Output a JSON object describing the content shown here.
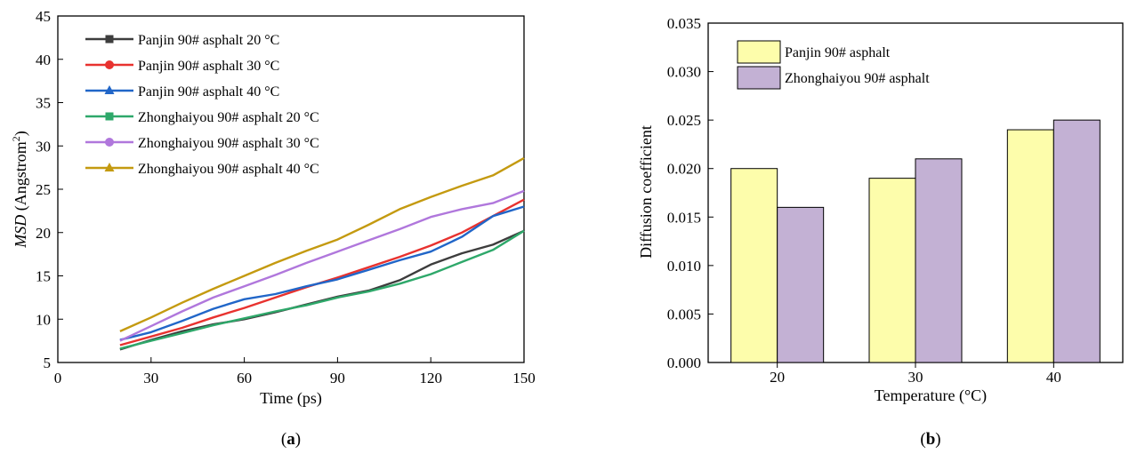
{
  "chart_data": [
    {
      "type": "line",
      "panel_label_open": "(",
      "panel_label_letter": "a",
      "panel_label_close": ")",
      "xlabel": "Time (ps)",
      "ylabel_italic": "MSD",
      "ylabel_rest": " (Angstrom",
      "ylabel_sup": "2",
      "ylabel_close": ")",
      "xlim": [
        0,
        150
      ],
      "ylim": [
        5,
        45
      ],
      "xticks": [
        "0",
        "30",
        "60",
        "90",
        "120",
        "150"
      ],
      "yticks": [
        "5",
        "10",
        "15",
        "20",
        "25",
        "30",
        "35",
        "40",
        "45"
      ],
      "legend_position": "top-left",
      "series": [
        {
          "name": "Panjin 90# asphalt 20 °C",
          "color": "#3d3d3d",
          "marker": "square",
          "x": [
            20,
            30,
            40,
            50,
            60,
            70,
            80,
            90,
            100,
            110,
            120,
            130,
            140,
            150
          ],
          "y": [
            6.5,
            7.6,
            8.6,
            9.4,
            10.0,
            10.8,
            11.7,
            12.6,
            13.3,
            14.5,
            16.3,
            17.6,
            18.6,
            20.2
          ]
        },
        {
          "name": "Panjin 90# asphalt 30 °C",
          "color": "#e8322f",
          "marker": "circle",
          "x": [
            20,
            30,
            40,
            50,
            60,
            70,
            80,
            90,
            100,
            110,
            120,
            130,
            140,
            150
          ],
          "y": [
            7.0,
            8.0,
            9.0,
            10.2,
            11.3,
            12.5,
            13.7,
            14.8,
            16.0,
            17.2,
            18.5,
            20.0,
            21.9,
            23.8
          ]
        },
        {
          "name": "Panjin 90# asphalt 40 °C",
          "color": "#2166c8",
          "marker": "triangle",
          "x": [
            20,
            30,
            40,
            50,
            60,
            70,
            80,
            90,
            100,
            110,
            120,
            130,
            140,
            150
          ],
          "y": [
            7.6,
            8.5,
            9.8,
            11.2,
            12.3,
            12.9,
            13.8,
            14.6,
            15.7,
            16.8,
            17.8,
            19.5,
            21.9,
            23.0
          ]
        },
        {
          "name": "Zhonghaiyou 90# asphalt 20 °C",
          "color": "#2ea86a",
          "marker": "square",
          "x": [
            20,
            30,
            40,
            50,
            60,
            70,
            80,
            90,
            100,
            110,
            120,
            130,
            140,
            150
          ],
          "y": [
            6.6,
            7.5,
            8.4,
            9.3,
            10.1,
            10.9,
            11.6,
            12.5,
            13.2,
            14.1,
            15.2,
            16.6,
            18.0,
            20.2
          ]
        },
        {
          "name": "Zhonghaiyou 90# asphalt 30 °C",
          "color": "#b077dc",
          "marker": "circle",
          "x": [
            20,
            30,
            40,
            50,
            60,
            70,
            80,
            90,
            100,
            110,
            120,
            130,
            140,
            150
          ],
          "y": [
            7.5,
            9.2,
            10.9,
            12.5,
            13.8,
            15.1,
            16.5,
            17.8,
            19.1,
            20.4,
            21.8,
            22.7,
            23.4,
            24.8
          ]
        },
        {
          "name": "Zhonghaiyou 90# asphalt 40 °C",
          "color": "#c49a10",
          "marker": "triangle",
          "x": [
            20,
            30,
            40,
            50,
            60,
            70,
            80,
            90,
            100,
            110,
            120,
            130,
            140,
            150
          ],
          "y": [
            8.6,
            10.2,
            11.9,
            13.5,
            15.0,
            16.5,
            17.9,
            19.2,
            20.9,
            22.7,
            24.1,
            25.4,
            26.6,
            28.6
          ]
        }
      ]
    },
    {
      "type": "bar",
      "panel_label_open": "(",
      "panel_label_letter": "b",
      "panel_label_close": ")",
      "xlabel": "Temperature (°C)",
      "ylabel": "Diffusion coefficient",
      "categories": [
        "20",
        "30",
        "40"
      ],
      "ylim": [
        0,
        0.035
      ],
      "yticks": [
        "0.000",
        "0.005",
        "0.010",
        "0.015",
        "0.020",
        "0.025",
        "0.030",
        "0.035"
      ],
      "legend_position": "top-left",
      "series": [
        {
          "name": "Panjin 90# asphalt",
          "color": "#fdfdab",
          "values": [
            0.02,
            0.019,
            0.024
          ]
        },
        {
          "name": "Zhonghaiyou 90# asphalt",
          "color": "#c3b1d4",
          "values": [
            0.016,
            0.021,
            0.025
          ]
        }
      ]
    }
  ]
}
